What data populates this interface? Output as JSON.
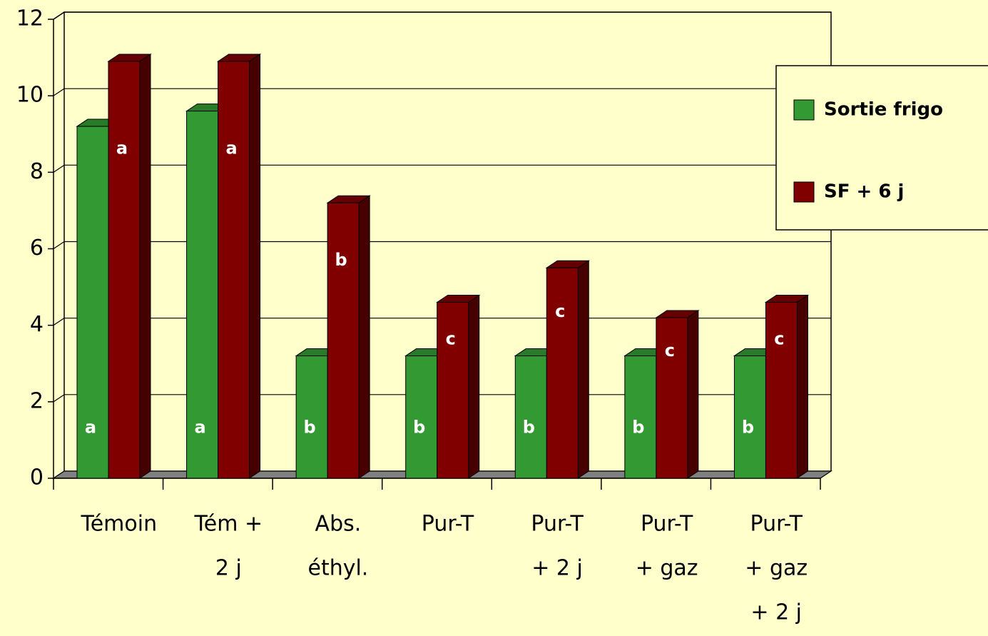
{
  "chart_data": {
    "type": "bar3d",
    "categories": [
      [
        "Témoin"
      ],
      [
        "Tém +",
        "2 j"
      ],
      [
        "Abs.",
        "éthyl."
      ],
      [
        "Pur-T"
      ],
      [
        "Pur-T",
        "+ 2 j"
      ],
      [
        "Pur-T",
        "+ gaz"
      ],
      [
        "Pur-T",
        "+ gaz",
        "+ 2 j"
      ]
    ],
    "series": [
      {
        "name": "Sortie frigo",
        "color": "#339933",
        "values": [
          9.2,
          9.6,
          3.2,
          3.2,
          3.2,
          3.2,
          3.2
        ],
        "labels": [
          "a",
          "a",
          "b",
          "b",
          "b",
          "b",
          "b"
        ]
      },
      {
        "name": "SF + 6 j",
        "color": "#800000",
        "values": [
          10.9,
          10.9,
          7.2,
          4.6,
          5.5,
          4.2,
          4.6
        ],
        "labels": [
          "a",
          "a",
          "b",
          "c",
          "c",
          "c",
          "c"
        ]
      }
    ],
    "ylim": [
      0,
      12
    ],
    "yticks": [
      0,
      2,
      4,
      6,
      8,
      10,
      12
    ],
    "grid": true,
    "legend": "right"
  }
}
